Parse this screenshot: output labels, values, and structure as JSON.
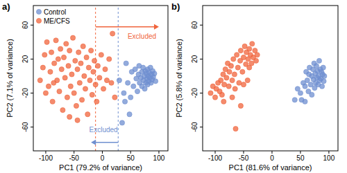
{
  "chart_data": [
    {
      "type": "scatter",
      "title": "a)",
      "x_label": "PC1 (79.2% of variance)",
      "y_label": "PC2 (7.1% of variance)",
      "xlim": [
        -122,
        116
      ],
      "ylim": [
        -88,
        83
      ],
      "xticks": [
        -100,
        -50,
        0,
        50,
        100
      ],
      "yticks": [
        -60,
        -20,
        20,
        60
      ],
      "legend": "top-left",
      "series": [
        {
          "name": "Control",
          "color": "#6f8fd0",
          "marker": "circle",
          "x": [
            30,
            35,
            38,
            42,
            45,
            50,
            52,
            55,
            58,
            60,
            62,
            64,
            65,
            66,
            68,
            70,
            70,
            72,
            73,
            74,
            75,
            76,
            77,
            78,
            79,
            80,
            80,
            81,
            82,
            83,
            84,
            85,
            86,
            87,
            88,
            89,
            90,
            92,
            94,
            48,
            40
          ],
          "y": [
            -5,
            -55,
            -20,
            15,
            -8,
            -25,
            5,
            -12,
            8,
            -3,
            -18,
            2,
            12,
            -8,
            -2,
            5,
            -12,
            10,
            -5,
            0,
            -15,
            6,
            -8,
            3,
            -3,
            8,
            -10,
            0,
            -6,
            4,
            -2,
            10,
            -8,
            2,
            -4,
            6,
            -1,
            3,
            -6,
            -45,
            -30
          ]
        },
        {
          "name": "ME/CFS",
          "color": "#f0643c",
          "marker": "circle",
          "x": [
            -110,
            -105,
            -102,
            -98,
            -95,
            -92,
            -90,
            -88,
            -85,
            -82,
            -80,
            -78,
            -76,
            -74,
            -72,
            -70,
            -68,
            -66,
            -64,
            -62,
            -60,
            -58,
            -56,
            -54,
            -52,
            -50,
            -48,
            -46,
            -44,
            -42,
            -40,
            -38,
            -36,
            -34,
            -32,
            -30,
            -28,
            -26,
            -24,
            -22,
            -20,
            -18,
            -16,
            -14,
            -12,
            -10,
            -8,
            -5,
            -2,
            2,
            5,
            8,
            12,
            16,
            18,
            22,
            -100,
            -86,
            -58,
            -44
          ],
          "y": [
            -5,
            10,
            25,
            40,
            -12,
            5,
            28,
            -30,
            15,
            42,
            -5,
            20,
            -18,
            32,
            8,
            -40,
            22,
            -2,
            38,
            -25,
            12,
            30,
            -12,
            2,
            45,
            -20,
            18,
            -35,
            8,
            28,
            -8,
            15,
            -28,
            35,
            0,
            -15,
            22,
            -45,
            10,
            -5,
            30,
            -22,
            5,
            18,
            -10,
            -30,
            12,
            -2,
            25,
            -15,
            8,
            -5,
            20,
            -8,
            50,
            -25,
            -20,
            -8,
            -48,
            -52
          ]
        }
      ],
      "vlines": [
        {
          "value": -12,
          "color": "#f0643c"
        },
        {
          "value": 28,
          "color": "#6f8fd0"
        }
      ],
      "arrows": [
        {
          "x": [
            -12,
            100
          ],
          "y": 58,
          "color": "#f0643c"
        },
        {
          "x": [
            28,
            -20
          ],
          "y": -78,
          "color": "#6f8fd0"
        }
      ],
      "annotations": [
        {
          "text": "Excluded",
          "x": 70,
          "y": 44,
          "color": "#f0643c"
        },
        {
          "text": "Excluded",
          "x": 2,
          "y": -66,
          "color": "#6f8fd0"
        }
      ]
    },
    {
      "type": "scatter",
      "title": "b)",
      "x_label": "PC1 (81.6% of variance)",
      "y_label": "PC2 (5.8% of variance)",
      "xlim": [
        -122,
        116
      ],
      "ylim": [
        -88,
        83
      ],
      "xticks": [
        -100,
        -50,
        0,
        50,
        100
      ],
      "yticks": [
        -60,
        -20,
        20,
        60
      ],
      "series": [
        {
          "color": "#6f8fd0",
          "marker": "circle",
          "x": [
            40,
            45,
            50,
            55,
            58,
            60,
            62,
            64,
            65,
            66,
            68,
            70,
            70,
            72,
            73,
            74,
            75,
            76,
            77,
            78,
            79,
            80,
            81,
            82,
            83,
            84,
            85,
            86,
            87,
            88,
            89,
            90,
            91,
            92,
            58,
            52
          ],
          "y": [
            -28,
            -15,
            -20,
            -8,
            -12,
            5,
            -5,
            -18,
            2,
            10,
            -10,
            0,
            -22,
            8,
            -4,
            15,
            -14,
            3,
            -8,
            12,
            -2,
            6,
            -10,
            0,
            18,
            -5,
            8,
            -3,
            5,
            -12,
            2,
            10,
            -6,
            0,
            -30,
            -28
          ]
        },
        {
          "color": "#f0643c",
          "marker": "circle",
          "x": [
            -108,
            -104,
            -100,
            -98,
            -95,
            -92,
            -90,
            -88,
            -86,
            -84,
            -82,
            -80,
            -78,
            -76,
            -75,
            -72,
            -70,
            -68,
            -66,
            -65,
            -64,
            -62,
            -60,
            -58,
            -56,
            -55,
            -52,
            -50,
            -48,
            -46,
            -45,
            -43,
            -42,
            -40,
            -38,
            -36,
            -35,
            -33,
            -30,
            -28,
            -26,
            -50,
            -70,
            -85,
            -55,
            -40
          ],
          "y": [
            -20,
            -12,
            -25,
            -15,
            -8,
            -18,
            -5,
            -22,
            2,
            -10,
            8,
            -2,
            15,
            -12,
            5,
            12,
            -5,
            20,
            2,
            -15,
            -62,
            25,
            10,
            -8,
            18,
            30,
            5,
            22,
            35,
            14,
            28,
            -5,
            20,
            32,
            25,
            15,
            38,
            22,
            30,
            18,
            25,
            -10,
            -25,
            -30,
            -35,
            10
          ]
        }
      ]
    }
  ]
}
